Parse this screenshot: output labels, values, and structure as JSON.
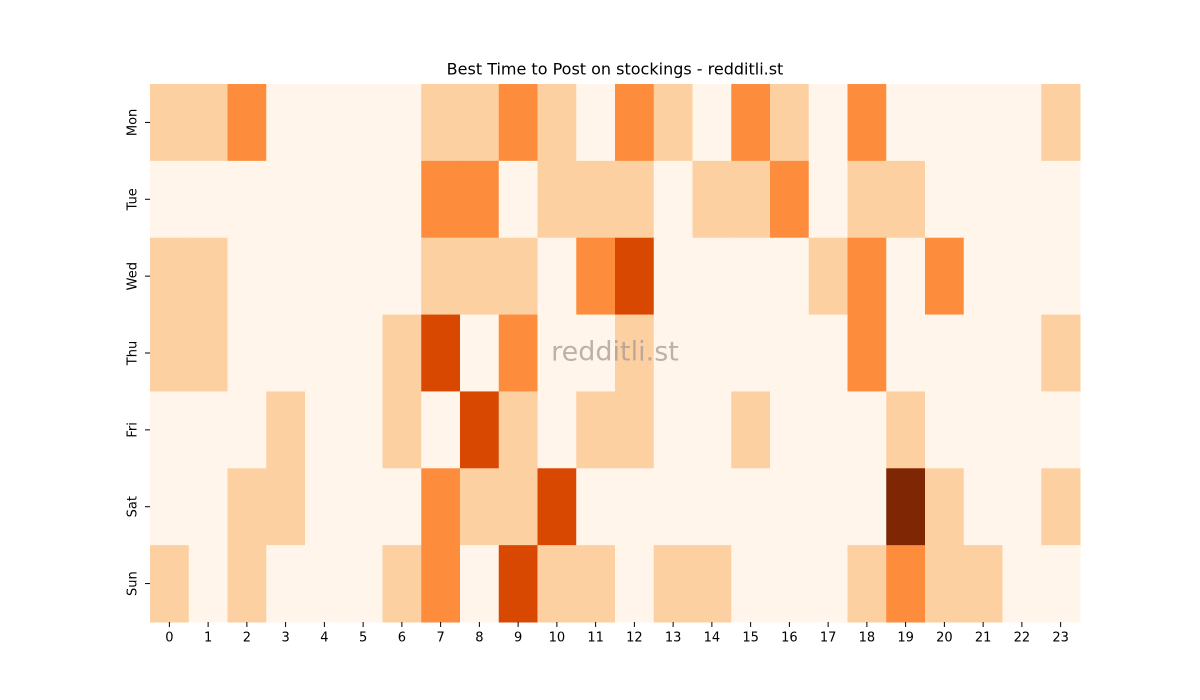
{
  "chart_data": {
    "type": "heatmap",
    "title": "Best Time to Post on stockings - redditli.st",
    "watermark": "redditli.st",
    "x_categories": [
      "0",
      "1",
      "2",
      "3",
      "4",
      "5",
      "6",
      "7",
      "8",
      "9",
      "10",
      "11",
      "12",
      "13",
      "14",
      "15",
      "16",
      "17",
      "18",
      "19",
      "20",
      "21",
      "22",
      "23"
    ],
    "y_categories": [
      "Mon",
      "Tue",
      "Wed",
      "Thu",
      "Fri",
      "Sat",
      "Sun"
    ],
    "values": [
      [
        1,
        1,
        2,
        0,
        0,
        0,
        0,
        1,
        1,
        2,
        1,
        0,
        2,
        1,
        0,
        2,
        1,
        0,
        2,
        0,
        0,
        0,
        0,
        1
      ],
      [
        0,
        0,
        0,
        0,
        0,
        0,
        0,
        2,
        2,
        0,
        1,
        1,
        1,
        0,
        1,
        1,
        2,
        0,
        1,
        1,
        0,
        0,
        0,
        0
      ],
      [
        1,
        1,
        0,
        0,
        0,
        0,
        0,
        1,
        1,
        1,
        0,
        2,
        3,
        0,
        0,
        0,
        0,
        1,
        2,
        0,
        2,
        0,
        0,
        0
      ],
      [
        1,
        1,
        0,
        0,
        0,
        0,
        1,
        3,
        0,
        2,
        0,
        0,
        1,
        0,
        0,
        0,
        0,
        0,
        2,
        0,
        0,
        0,
        0,
        1
      ],
      [
        0,
        0,
        0,
        1,
        0,
        0,
        1,
        0,
        3,
        1,
        0,
        1,
        1,
        0,
        0,
        1,
        0,
        0,
        0,
        1,
        0,
        0,
        0,
        0
      ],
      [
        0,
        0,
        1,
        1,
        0,
        0,
        0,
        2,
        1,
        1,
        3,
        0,
        0,
        0,
        0,
        0,
        0,
        0,
        0,
        4,
        1,
        0,
        0,
        1
      ],
      [
        1,
        0,
        1,
        0,
        0,
        0,
        1,
        2,
        0,
        3,
        1,
        1,
        0,
        1,
        1,
        0,
        0,
        0,
        1,
        2,
        1,
        1,
        0,
        0
      ]
    ],
    "colormap": [
      "#fff5eb",
      "#fdd0a2",
      "#fd8d3c",
      "#d94801",
      "#7f2704"
    ],
    "vlim": [
      0,
      4
    ]
  }
}
